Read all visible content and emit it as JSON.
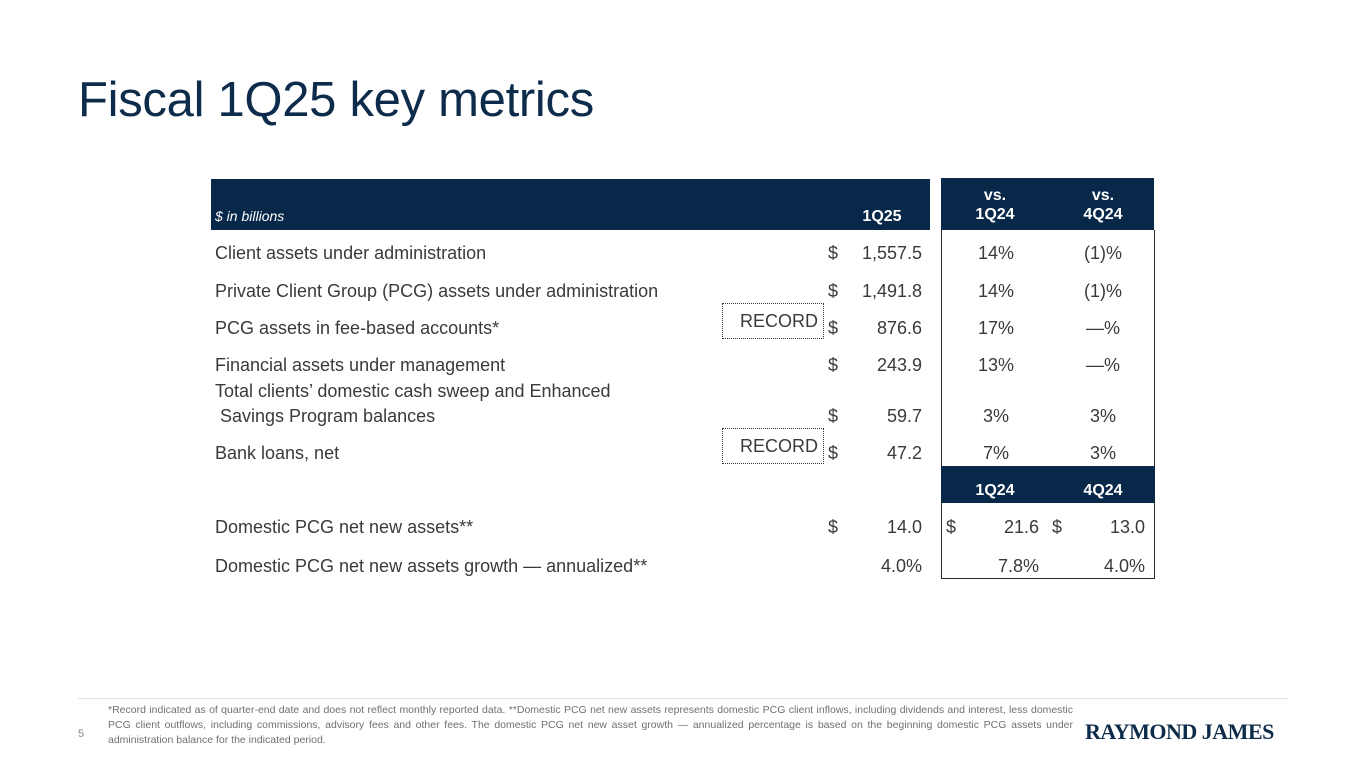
{
  "title": "Fiscal 1Q25 key metrics",
  "table": {
    "units": "$ in billions",
    "col_current": "1Q25",
    "col_vs1": [
      "vs.",
      "1Q24"
    ],
    "col_vs2": [
      "vs.",
      "4Q24"
    ],
    "rows": [
      {
        "label": "Client assets under administration",
        "record": "",
        "dollar": "$",
        "value": "1,557.5",
        "vs1": "14%",
        "vs2": "(1)%"
      },
      {
        "label": "Private Client Group (PCG) assets under administration",
        "record": "",
        "dollar": "$",
        "value": "1,491.8",
        "vs1": "14%",
        "vs2": "(1)%"
      },
      {
        "label": "PCG assets in fee-based accounts*",
        "record": "RECORD",
        "dollar": "$",
        "value": "876.6",
        "vs1": "17%",
        "vs2": "—%"
      },
      {
        "label": "Financial assets under management",
        "record": "",
        "dollar": "$",
        "value": "243.9",
        "vs1": "13%",
        "vs2": "—%"
      },
      {
        "label_line1": "Total clients’ domestic cash sweep and Enhanced",
        "label_line2": "Savings Program balances",
        "record": "",
        "dollar": "$",
        "value": "59.7",
        "vs1": "3%",
        "vs2": "3%"
      },
      {
        "label": "Bank loans, net",
        "record": "RECORD",
        "dollar": "$",
        "value": "47.2",
        "vs1": "7%",
        "vs2": "3%"
      }
    ],
    "subheader": {
      "col1": "1Q24",
      "col2": "4Q24"
    },
    "nna_rows": [
      {
        "label": "Domestic PCG net new assets**",
        "dollar": "$",
        "value": "14.0",
        "dollar1": "$",
        "val1": "21.6",
        "dollar2": "$",
        "val2": "13.0"
      },
      {
        "label": "Domestic PCG net new assets growth — annualized**",
        "dollar": "",
        "value": "4.0%",
        "dollar1": "",
        "val1": "7.8%",
        "dollar2": "",
        "val2": "4.0%"
      }
    ]
  },
  "footer": {
    "page_number": "5",
    "footnote": "*Record indicated as of quarter-end date and does not reflect monthly reported data.  **Domestic PCG net new assets represents domestic PCG client inflows, including dividends and interest, less domestic PCG client outflows, including commissions, advisory fees and other fees. The domestic PCG net new asset growth — annualized percentage is based on the beginning domestic PCG assets under administration balance for the indicated period.",
    "logo_text": "RAYMOND JAMES"
  }
}
